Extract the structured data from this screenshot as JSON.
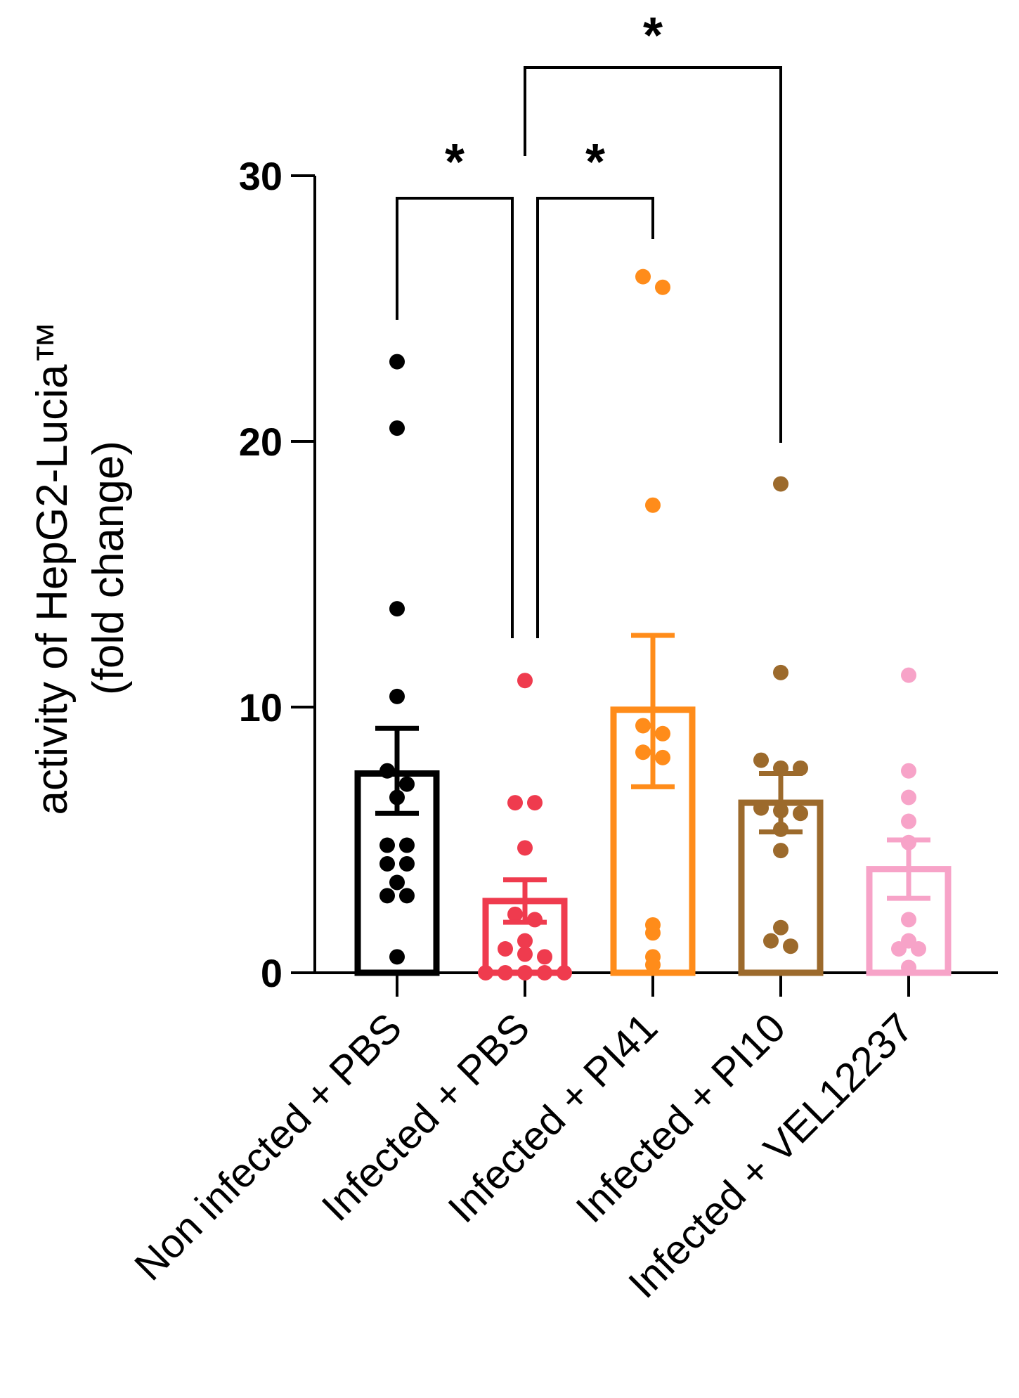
{
  "chart_data": {
    "type": "bar",
    "title": "",
    "xlabel": "",
    "ylabel_lines": [
      "activity of HepG2-Lucia™",
      "(fold change)"
    ],
    "ylim": [
      0,
      30
    ],
    "yticks": [
      "0",
      "10",
      "20",
      "30"
    ],
    "ytick_values": [
      0,
      10,
      20,
      30
    ],
    "grid": false,
    "categories": [
      "Non infected + PBS",
      "Infected + PBS",
      "Infected + PI41",
      "Infected + PI10",
      "Infected + VEL12237"
    ],
    "series": [
      {
        "name": "Non infected + PBS",
        "color": "#000000",
        "mean": 7.5,
        "sem_low": 6.0,
        "sem_high": 9.2,
        "points": [
          23.0,
          20.5,
          13.7,
          10.4,
          7.6,
          7.1,
          6.6,
          4.8,
          4.8,
          4.1,
          4.1,
          3.4,
          2.9,
          2.9,
          0.6
        ]
      },
      {
        "name": "Infected + PBS",
        "color": "#ef3b4e",
        "mean": 2.7,
        "sem_low": 1.9,
        "sem_high": 3.5,
        "points": [
          11.0,
          6.4,
          6.4,
          4.7,
          2.2,
          2.0,
          1.2,
          0.9,
          0.7,
          0.6,
          0.0,
          0.0,
          0.0,
          0.0,
          0.0
        ]
      },
      {
        "name": "Infected + PI41",
        "color": "#ff8c1a",
        "mean": 9.9,
        "sem_low": 7.0,
        "sem_high": 12.7,
        "points": [
          26.2,
          25.8,
          17.6,
          9.3,
          9.0,
          8.3,
          8.1,
          1.8,
          1.5,
          0.6,
          0.3
        ]
      },
      {
        "name": "Infected + PI10",
        "color": "#9c6a2c",
        "mean": 6.4,
        "sem_low": 5.3,
        "sem_high": 7.5,
        "points": [
          18.4,
          11.3,
          8.0,
          7.7,
          7.7,
          6.2,
          6.1,
          6.0,
          5.4,
          4.6,
          1.7,
          1.2,
          1.0
        ]
      },
      {
        "name": "Infected + VEL12237",
        "color": "#f7a3c8",
        "mean": 3.9,
        "sem_low": 2.8,
        "sem_high": 5.0,
        "points": [
          11.2,
          7.6,
          6.6,
          5.7,
          4.9,
          2.0,
          1.2,
          0.9,
          0.9,
          0.2
        ]
      }
    ],
    "significance": [
      {
        "from": 0,
        "to": 1,
        "label": "*"
      },
      {
        "from": 1,
        "to": 2,
        "label": "*"
      },
      {
        "from": 1,
        "to": 3,
        "label": "*"
      }
    ]
  }
}
